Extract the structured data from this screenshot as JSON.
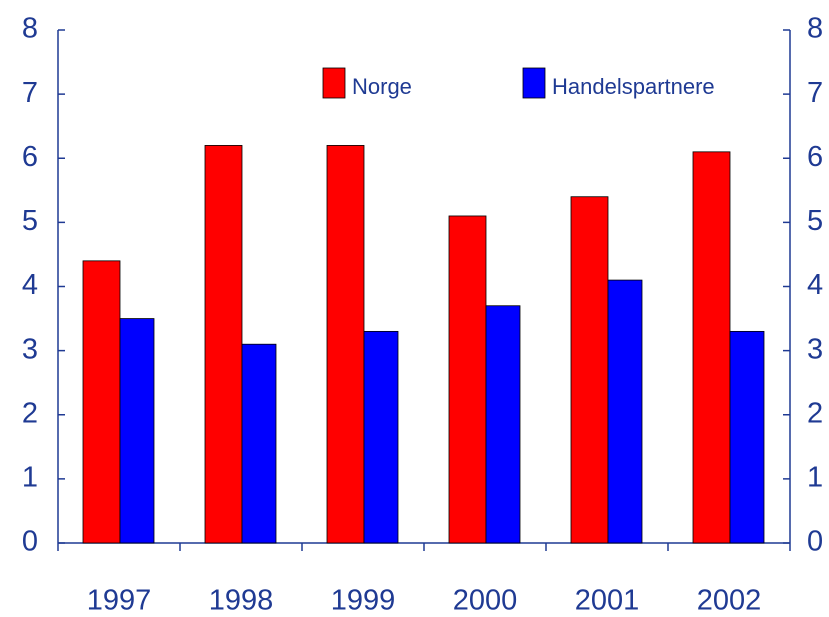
{
  "chart_data": {
    "type": "bar",
    "categories": [
      "1997",
      "1998",
      "1999",
      "2000",
      "2001",
      "2002"
    ],
    "series": [
      {
        "name": "Norge",
        "color": "#ff0000",
        "values": [
          4.4,
          6.2,
          6.2,
          5.1,
          5.4,
          6.1
        ]
      },
      {
        "name": "Handelspartnere",
        "color": "#0000ff",
        "values": [
          3.5,
          3.1,
          3.3,
          3.7,
          4.1,
          3.3
        ]
      }
    ],
    "ylim": [
      0,
      8
    ],
    "yticks": [
      0,
      1,
      2,
      3,
      4,
      5,
      6,
      7,
      8
    ],
    "y2lim": [
      0,
      8
    ],
    "y2ticks": [
      0,
      1,
      2,
      3,
      4,
      5,
      6,
      7,
      8
    ],
    "legend": "top",
    "grid": false
  }
}
